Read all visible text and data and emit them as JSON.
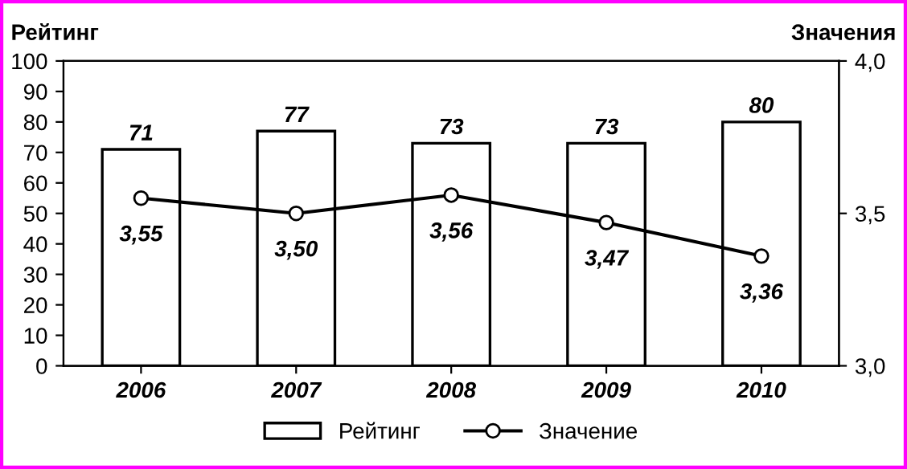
{
  "chart_data": {
    "type": "bar",
    "ylabel": "Рейтинг",
    "y2label": "Значения",
    "categories": [
      "2006",
      "2007",
      "2008",
      "2009",
      "2010"
    ],
    "series": [
      {
        "name": "Рейтинг",
        "color": "#ffffff",
        "values": [
          71,
          77,
          73,
          73,
          80
        ],
        "data_labels": true
      },
      {
        "name": "Значение",
        "type": "line",
        "axis": "y2",
        "color": "#000000",
        "marker": "circle",
        "line_style": "solid",
        "values": [
          3.55,
          3.5,
          3.56,
          3.47,
          3.36
        ],
        "value_labels": [
          "3,55",
          "3,50",
          "3,56",
          "3,47",
          "3,36"
        ]
      }
    ],
    "ylim": [
      0,
      100
    ],
    "yticks": [
      0,
      10,
      20,
      30,
      40,
      50,
      60,
      70,
      80,
      90,
      100
    ],
    "y2lim": [
      3.0,
      4.0
    ],
    "y2ticks": [
      {
        "value": 3.0,
        "label": "3,0"
      },
      {
        "value": 3.5,
        "label": "3,5"
      },
      {
        "value": 4.0,
        "label": "4,0"
      }
    ],
    "grid": false,
    "legend": "bottom"
  }
}
